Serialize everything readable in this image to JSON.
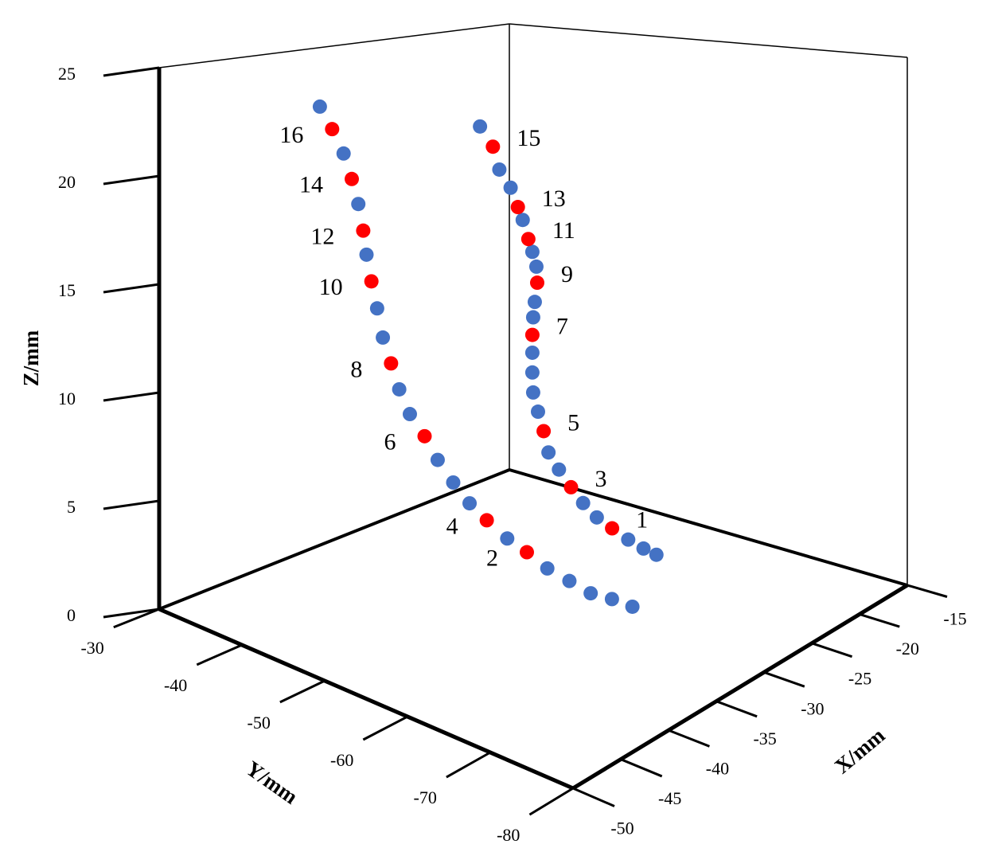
{
  "chart_data": {
    "type": "scatter3d",
    "xlabel": "X/mm",
    "ylabel": "Y/mm",
    "zlabel": "Z/mm",
    "xlim": [
      -50,
      -15
    ],
    "xticks": [
      -50,
      -45,
      -40,
      -35,
      -30,
      -25,
      -20,
      -15
    ],
    "ylim": [
      -30,
      -80
    ],
    "yticks": [
      -30,
      -40,
      -50,
      -60,
      -70,
      -80
    ],
    "zlim": [
      0,
      25
    ],
    "zticks": [
      0,
      5,
      10,
      15,
      20,
      25
    ],
    "series": [
      {
        "color": "#4472c4",
        "x": [
          -39.5,
          -39.5,
          -39.5,
          -39.5,
          -39.5,
          -39.5,
          -39.5,
          -39.5,
          -39.5,
          -39.5,
          -39.5,
          -39.5,
          -39.5,
          -39.5,
          -39.5,
          -39.5,
          -39.5,
          -25.5,
          -25.5,
          -25.5,
          -25.5,
          -25.5,
          -25.5,
          -25.5,
          -25.5,
          -25.5,
          -25.5,
          -25.5,
          -25.5,
          -25.5,
          -25.5,
          -25.5,
          -25.5,
          -25.5,
          -25.5,
          -25.5
        ],
        "y": [
          -36.8,
          -39.7,
          -41.5,
          -42.5,
          -43.8,
          -44.5,
          -46.5,
          -47.8,
          -51.2,
          -53.1,
          -55.1,
          -59.7,
          -64.6,
          -67.3,
          -69.9,
          -72.5,
          -75.0,
          -39.4,
          -41.8,
          -43.2,
          -44.7,
          -45.9,
          -46.4,
          -46.2,
          -46.0,
          -45.9,
          -45.9,
          -46.0,
          -46.6,
          -47.9,
          -49.2,
          -52.2,
          -53.9,
          -57.8,
          -59.7,
          -61.3
        ],
        "z": [
          23.3,
          21.4,
          19.2,
          16.9,
          14.5,
          13.2,
          11.0,
          10.0,
          8.3,
          7.5,
          6.8,
          5.8,
          5.1,
          4.9,
          4.7,
          4.8,
          4.8,
          21.1,
          19.1,
          18.3,
          16.8,
          15.3,
          14.6,
          12.8,
          12.0,
          10.2,
          9.2,
          8.2,
          7.3,
          5.4,
          4.7,
          3.4,
          2.9,
          2.3,
          2.1,
          2.0
        ]
      },
      {
        "color": "#ff0000",
        "labels": [
          "1",
          "2",
          "3",
          "4",
          "5",
          "6",
          "7",
          "8",
          "9",
          "10",
          "11",
          "12",
          "13",
          "14",
          "15",
          "16"
        ],
        "x": [
          -25.5,
          -39.5,
          -25.5,
          -39.5,
          -25.5,
          -39.5,
          -25.5,
          -39.5,
          -25.5,
          -39.5,
          -25.5,
          -39.5,
          -25.5,
          -39.5,
          -25.5,
          -39.5
        ],
        "y": [
          -55.8,
          -62.1,
          -50.7,
          -57.2,
          -47.3,
          -49.6,
          -45.9,
          -45.5,
          -46.5,
          -43.1,
          -45.4,
          -42.1,
          -44.1,
          -40.7,
          -41.0,
          -38.3
        ],
        "z": [
          2.6,
          5.5,
          4.0,
          6.3,
          6.4,
          9.2,
          11.1,
          12.1,
          13.8,
          15.7,
          15.9,
          18.0,
          17.4,
          20.3,
          20.2,
          22.4
        ]
      }
    ]
  }
}
